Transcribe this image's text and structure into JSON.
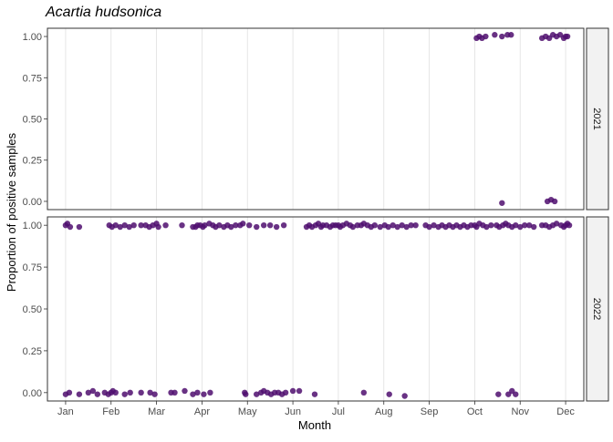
{
  "chart_data": {
    "type": "scatter",
    "title": "Acartia hudsonica",
    "xlabel": "Month",
    "ylabel": "Proportion of positive samples",
    "x_ticks": [
      "Jan",
      "Feb",
      "Mar",
      "Apr",
      "May",
      "Jun",
      "Jul",
      "Aug",
      "Sep",
      "Oct",
      "Nov",
      "Dec"
    ],
    "y_ticks": [
      "0.00",
      "0.25",
      "0.50",
      "0.75",
      "1.00"
    ],
    "ylim": [
      -0.05,
      1.05
    ],
    "xlim_months": [
      0.6,
      12.4
    ],
    "grid": true,
    "point_color": "#4f0e6e",
    "facets": [
      {
        "label": "2021",
        "points": [
          {
            "x": 10.04,
            "y": 0.99
          },
          {
            "x": 10.1,
            "y": 1.0
          },
          {
            "x": 10.16,
            "y": 0.99
          },
          {
            "x": 10.24,
            "y": 1.0
          },
          {
            "x": 10.44,
            "y": 1.01
          },
          {
            "x": 10.6,
            "y": 1.0
          },
          {
            "x": 10.72,
            "y": 1.01
          },
          {
            "x": 10.8,
            "y": 1.01
          },
          {
            "x": 10.6,
            "y": -0.01
          },
          {
            "x": 11.48,
            "y": 0.99
          },
          {
            "x": 11.56,
            "y": 1.0
          },
          {
            "x": 11.64,
            "y": 0.99
          },
          {
            "x": 11.72,
            "y": 1.01
          },
          {
            "x": 11.8,
            "y": 1.0
          },
          {
            "x": 11.88,
            "y": 1.01
          },
          {
            "x": 11.96,
            "y": 0.99
          },
          {
            "x": 12.0,
            "y": 1.0
          },
          {
            "x": 12.04,
            "y": 1.0
          },
          {
            "x": 11.6,
            "y": 0.0
          },
          {
            "x": 11.68,
            "y": 0.01
          },
          {
            "x": 11.76,
            "y": 0.0
          }
        ]
      },
      {
        "label": "2022",
        "points": [
          {
            "x": 1.0,
            "y": 1.0
          },
          {
            "x": 1.04,
            "y": 1.01
          },
          {
            "x": 1.1,
            "y": 0.99
          },
          {
            "x": 1.3,
            "y": 0.99
          },
          {
            "x": 1.96,
            "y": 1.0
          },
          {
            "x": 2.02,
            "y": 0.99
          },
          {
            "x": 2.1,
            "y": 1.0
          },
          {
            "x": 2.2,
            "y": 0.99
          },
          {
            "x": 2.3,
            "y": 1.0
          },
          {
            "x": 2.4,
            "y": 0.99
          },
          {
            "x": 2.5,
            "y": 1.0
          },
          {
            "x": 2.66,
            "y": 1.0
          },
          {
            "x": 2.76,
            "y": 1.0
          },
          {
            "x": 2.84,
            "y": 0.99
          },
          {
            "x": 2.92,
            "y": 1.0
          },
          {
            "x": 3.0,
            "y": 1.01
          },
          {
            "x": 3.04,
            "y": 0.99
          },
          {
            "x": 3.2,
            "y": 1.0
          },
          {
            "x": 3.56,
            "y": 1.0
          },
          {
            "x": 3.8,
            "y": 0.99
          },
          {
            "x": 3.86,
            "y": 0.99
          },
          {
            "x": 3.9,
            "y": 1.0
          },
          {
            "x": 3.96,
            "y": 1.0
          },
          {
            "x": 4.02,
            "y": 0.99
          },
          {
            "x": 4.06,
            "y": 1.0
          },
          {
            "x": 4.16,
            "y": 1.01
          },
          {
            "x": 4.24,
            "y": 1.0
          },
          {
            "x": 4.3,
            "y": 0.99
          },
          {
            "x": 4.38,
            "y": 1.0
          },
          {
            "x": 4.48,
            "y": 0.99
          },
          {
            "x": 4.56,
            "y": 1.0
          },
          {
            "x": 4.64,
            "y": 0.99
          },
          {
            "x": 4.74,
            "y": 1.0
          },
          {
            "x": 4.84,
            "y": 1.0
          },
          {
            "x": 4.9,
            "y": 1.01
          },
          {
            "x": 5.04,
            "y": 1.0
          },
          {
            "x": 5.2,
            "y": 0.99
          },
          {
            "x": 5.36,
            "y": 1.0
          },
          {
            "x": 5.5,
            "y": 1.0
          },
          {
            "x": 5.64,
            "y": 0.99
          },
          {
            "x": 5.8,
            "y": 1.0
          },
          {
            "x": 6.3,
            "y": 0.99
          },
          {
            "x": 6.36,
            "y": 1.0
          },
          {
            "x": 6.42,
            "y": 0.99
          },
          {
            "x": 6.5,
            "y": 1.0
          },
          {
            "x": 6.56,
            "y": 1.01
          },
          {
            "x": 6.62,
            "y": 0.99
          },
          {
            "x": 6.66,
            "y": 1.0
          },
          {
            "x": 6.74,
            "y": 1.0
          },
          {
            "x": 6.82,
            "y": 0.99
          },
          {
            "x": 6.88,
            "y": 1.0
          },
          {
            "x": 6.94,
            "y": 1.0
          },
          {
            "x": 7.0,
            "y": 1.0
          },
          {
            "x": 7.04,
            "y": 0.99
          },
          {
            "x": 7.1,
            "y": 1.0
          },
          {
            "x": 7.18,
            "y": 1.01
          },
          {
            "x": 7.26,
            "y": 1.0
          },
          {
            "x": 7.32,
            "y": 0.99
          },
          {
            "x": 7.42,
            "y": 1.0
          },
          {
            "x": 7.5,
            "y": 1.0
          },
          {
            "x": 7.56,
            "y": 1.01
          },
          {
            "x": 7.64,
            "y": 1.0
          },
          {
            "x": 7.72,
            "y": 0.99
          },
          {
            "x": 7.8,
            "y": 1.0
          },
          {
            "x": 7.92,
            "y": 0.99
          },
          {
            "x": 8.02,
            "y": 1.0
          },
          {
            "x": 8.1,
            "y": 0.99
          },
          {
            "x": 8.2,
            "y": 1.0
          },
          {
            "x": 8.3,
            "y": 0.99
          },
          {
            "x": 8.4,
            "y": 1.0
          },
          {
            "x": 8.5,
            "y": 0.99
          },
          {
            "x": 8.6,
            "y": 1.0
          },
          {
            "x": 8.7,
            "y": 1.0
          },
          {
            "x": 8.92,
            "y": 1.0
          },
          {
            "x": 9.0,
            "y": 0.99
          },
          {
            "x": 9.1,
            "y": 1.0
          },
          {
            "x": 9.2,
            "y": 0.99
          },
          {
            "x": 9.28,
            "y": 1.0
          },
          {
            "x": 9.36,
            "y": 0.99
          },
          {
            "x": 9.44,
            "y": 1.0
          },
          {
            "x": 9.52,
            "y": 0.99
          },
          {
            "x": 9.6,
            "y": 1.0
          },
          {
            "x": 9.68,
            "y": 0.99
          },
          {
            "x": 9.76,
            "y": 1.0
          },
          {
            "x": 9.84,
            "y": 0.99
          },
          {
            "x": 9.92,
            "y": 1.0
          },
          {
            "x": 10.0,
            "y": 1.0
          },
          {
            "x": 10.04,
            "y": 0.99
          },
          {
            "x": 10.1,
            "y": 1.01
          },
          {
            "x": 10.18,
            "y": 1.0
          },
          {
            "x": 10.26,
            "y": 0.99
          },
          {
            "x": 10.36,
            "y": 1.0
          },
          {
            "x": 10.48,
            "y": 1.0
          },
          {
            "x": 10.54,
            "y": 0.99
          },
          {
            "x": 10.62,
            "y": 1.0
          },
          {
            "x": 10.68,
            "y": 1.01
          },
          {
            "x": 10.74,
            "y": 1.0
          },
          {
            "x": 10.82,
            "y": 0.99
          },
          {
            "x": 10.9,
            "y": 1.0
          },
          {
            "x": 11.0,
            "y": 0.99
          },
          {
            "x": 11.1,
            "y": 1.0
          },
          {
            "x": 11.2,
            "y": 1.0
          },
          {
            "x": 11.3,
            "y": 0.99
          },
          {
            "x": 11.48,
            "y": 1.0
          },
          {
            "x": 11.56,
            "y": 1.0
          },
          {
            "x": 11.64,
            "y": 0.99
          },
          {
            "x": 11.72,
            "y": 1.0
          },
          {
            "x": 11.8,
            "y": 1.01
          },
          {
            "x": 11.9,
            "y": 1.0
          },
          {
            "x": 11.96,
            "y": 0.99
          },
          {
            "x": 12.0,
            "y": 1.0
          },
          {
            "x": 12.04,
            "y": 1.01
          },
          {
            "x": 12.08,
            "y": 1.0
          },
          {
            "x": 1.0,
            "y": -0.01
          },
          {
            "x": 1.08,
            "y": 0.0
          },
          {
            "x": 1.3,
            "y": -0.01
          },
          {
            "x": 1.5,
            "y": 0.0
          },
          {
            "x": 1.6,
            "y": 0.01
          },
          {
            "x": 1.7,
            "y": -0.01
          },
          {
            "x": 1.86,
            "y": 0.0
          },
          {
            "x": 1.94,
            "y": -0.01
          },
          {
            "x": 2.0,
            "y": 0.0
          },
          {
            "x": 2.04,
            "y": 0.01
          },
          {
            "x": 2.1,
            "y": 0.0
          },
          {
            "x": 2.3,
            "y": -0.01
          },
          {
            "x": 2.42,
            "y": 0.0
          },
          {
            "x": 2.66,
            "y": 0.0
          },
          {
            "x": 2.86,
            "y": 0.0
          },
          {
            "x": 2.96,
            "y": -0.01
          },
          {
            "x": 3.32,
            "y": 0.0
          },
          {
            "x": 3.4,
            "y": 0.0
          },
          {
            "x": 3.62,
            "y": 0.01
          },
          {
            "x": 3.8,
            "y": -0.01
          },
          {
            "x": 3.9,
            "y": 0.0
          },
          {
            "x": 4.04,
            "y": -0.01
          },
          {
            "x": 4.18,
            "y": 0.0
          },
          {
            "x": 4.94,
            "y": 0.0
          },
          {
            "x": 4.96,
            "y": -0.01
          },
          {
            "x": 5.2,
            "y": -0.01
          },
          {
            "x": 5.3,
            "y": 0.0
          },
          {
            "x": 5.36,
            "y": 0.01
          },
          {
            "x": 5.44,
            "y": 0.0
          },
          {
            "x": 5.52,
            "y": -0.01
          },
          {
            "x": 5.6,
            "y": 0.0
          },
          {
            "x": 5.68,
            "y": 0.0
          },
          {
            "x": 5.76,
            "y": -0.01
          },
          {
            "x": 5.84,
            "y": 0.0
          },
          {
            "x": 6.0,
            "y": 0.01
          },
          {
            "x": 6.14,
            "y": 0.01
          },
          {
            "x": 6.48,
            "y": -0.01
          },
          {
            "x": 7.56,
            "y": 0.0
          },
          {
            "x": 8.12,
            "y": -0.01
          },
          {
            "x": 8.46,
            "y": -0.02
          },
          {
            "x": 10.52,
            "y": -0.01
          },
          {
            "x": 10.74,
            "y": -0.01
          },
          {
            "x": 10.82,
            "y": 0.01
          },
          {
            "x": 10.9,
            "y": -0.01
          }
        ]
      }
    ]
  }
}
